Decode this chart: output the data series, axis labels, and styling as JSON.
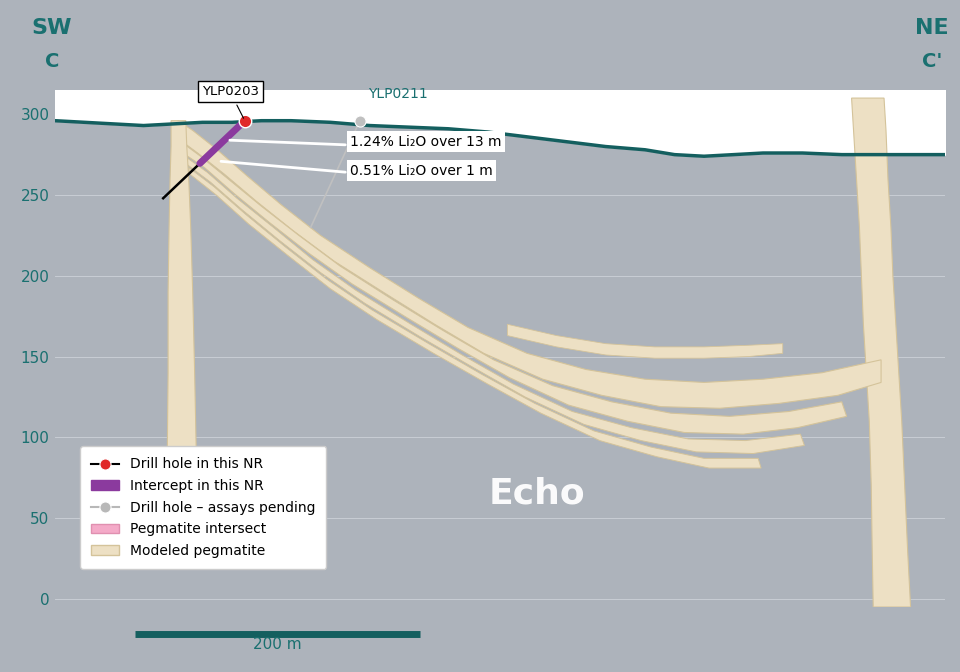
{
  "bg_color": "#adb3bb",
  "surface_color": "#145f5f",
  "pegmatite_fill": "#ede0c4",
  "pegmatite_edge": "#d4c39a",
  "teal_color": "#1a7070",
  "purple_color": "#8b3a9e",
  "pink_color": "#f4aac8",
  "red_color": "#e02828",
  "gray_color": "#b8b8b8",
  "white_color": "#ffffff",
  "black_color": "#222222",
  "grid_color": "#bbbfc5",
  "annot1": "1.24% Li₂O over 13 m",
  "annot2": "0.51% Li₂O over 1 m",
  "echo_label": "Echo",
  "scale_bar_label": "200 m"
}
